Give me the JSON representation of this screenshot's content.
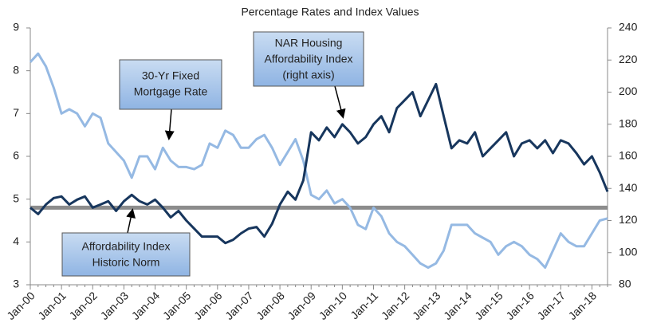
{
  "chart_data": {
    "type": "line",
    "title": "Percentage Rates and Index Values",
    "categories": [
      "Jan-00",
      null,
      null,
      null,
      "Jan-01",
      null,
      null,
      null,
      "Jan-02",
      null,
      null,
      null,
      "Jan-03",
      null,
      null,
      null,
      "Jan-04",
      null,
      null,
      null,
      "Jan-05",
      null,
      null,
      null,
      "Jan-06",
      null,
      null,
      null,
      "Jan-07",
      null,
      null,
      null,
      "Jan-08",
      null,
      null,
      null,
      "Jan-09",
      null,
      null,
      null,
      "Jan-10",
      null,
      null,
      null,
      "Jan-11",
      null,
      null,
      null,
      "Jan-12",
      null,
      null,
      null,
      "Jan-13",
      null,
      null,
      null,
      "Jan-14",
      null,
      null,
      null,
      "Jan-15",
      null,
      null,
      null,
      "Jan-16",
      null,
      null,
      null,
      "Jan-17",
      null,
      null,
      null,
      "Jan-18",
      null,
      null
    ],
    "series": [
      {
        "color": "#95b9e3",
        "axis": "y",
        "values": [
          8.2,
          8.4,
          8.1,
          7.6,
          7.0,
          7.1,
          7.0,
          6.7,
          7.0,
          6.9,
          6.3,
          6.1,
          5.9,
          5.5,
          6.0,
          6.0,
          5.7,
          6.2,
          5.9,
          5.75,
          5.75,
          5.7,
          5.8,
          6.3,
          6.2,
          6.6,
          6.5,
          6.2,
          6.2,
          6.4,
          6.5,
          6.2,
          5.8,
          6.1,
          6.4,
          5.9,
          5.1,
          5.0,
          5.2,
          4.9,
          5.0,
          4.8,
          4.4,
          4.3,
          4.8,
          4.6,
          4.2,
          4.0,
          3.9,
          3.7,
          3.5,
          3.4,
          3.5,
          3.8,
          4.4,
          4.4,
          4.4,
          4.2,
          4.1,
          4.0,
          3.7,
          3.9,
          4.0,
          3.9,
          3.7,
          3.6,
          3.4,
          3.8,
          4.2,
          4.0,
          3.9,
          3.9,
          4.2,
          4.5,
          4.55
        ]
      },
      {
        "color": "#17365d",
        "axis": "y2",
        "values": [
          128,
          124,
          130,
          134,
          135,
          130,
          133,
          135,
          128,
          130,
          132,
          126,
          132,
          136,
          132,
          130,
          133,
          128,
          122,
          126,
          120,
          115,
          110,
          110,
          110,
          106,
          108,
          112,
          115,
          116,
          110,
          118,
          130,
          138,
          133,
          145,
          175,
          170,
          178,
          172,
          180,
          175,
          168,
          172,
          180,
          185,
          175,
          190,
          195,
          200,
          185,
          195,
          205,
          185,
          165,
          170,
          168,
          175,
          160,
          165,
          170,
          175,
          160,
          168,
          170,
          165,
          170,
          162,
          170,
          168,
          162,
          155,
          160,
          150,
          138
        ]
      }
    ],
    "reference_line": {
      "value": 128,
      "axis": "y2",
      "color": "#8c8c8c"
    },
    "ylim": [
      3,
      9
    ],
    "yticks": [
      3,
      4,
      5,
      6,
      7,
      8,
      9
    ],
    "y2lim": [
      80,
      240
    ],
    "y2ticks": [
      80,
      100,
      120,
      140,
      160,
      180,
      200,
      220,
      240
    ],
    "annotations": [
      {
        "lines": [
          "30-Yr Fixed",
          "Mortgage Rate"
        ]
      },
      {
        "lines": [
          "NAR Housing",
          "Affordability Index",
          "(right axis)"
        ]
      },
      {
        "lines": [
          "Affordability Index",
          "Historic Norm"
        ]
      }
    ]
  }
}
